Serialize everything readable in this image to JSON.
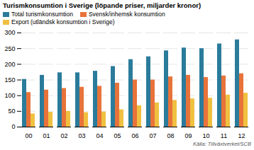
{
  "chart_data": {
    "type": "bar",
    "title": "Turismkonsumtion i Sverige (löpande priser, miljarder kronor)",
    "source": "Källa: Tillväxtverket/SCB",
    "categories": [
      "00",
      "01",
      "02",
      "03",
      "04",
      "05",
      "06",
      "07",
      "08",
      "09",
      "10",
      "11",
      "12"
    ],
    "series": [
      {
        "name": "Total turismkonsumtion",
        "color": "#2b7b9b",
        "values": [
          152,
          165,
          173,
          173,
          178,
          193,
          215,
          224,
          243,
          252,
          250,
          265,
          278
        ]
      },
      {
        "name": "Svensk/inhemsk konsumtion",
        "color": "#e8733a",
        "values": [
          110,
          118,
          123,
          127,
          130,
          140,
          150,
          150,
          160,
          165,
          158,
          163,
          170
        ]
      },
      {
        "name": "Export (utländsk konsumtion i Sverige)",
        "color": "#f0c040",
        "values": [
          42,
          47,
          50,
          46,
          48,
          55,
          68,
          77,
          85,
          90,
          92,
          102,
          108
        ]
      }
    ],
    "ylim": [
      0,
      300
    ],
    "yticks": [
      0,
      50,
      100,
      150,
      200,
      250,
      300
    ],
    "grid": true,
    "legend": "upper left"
  }
}
